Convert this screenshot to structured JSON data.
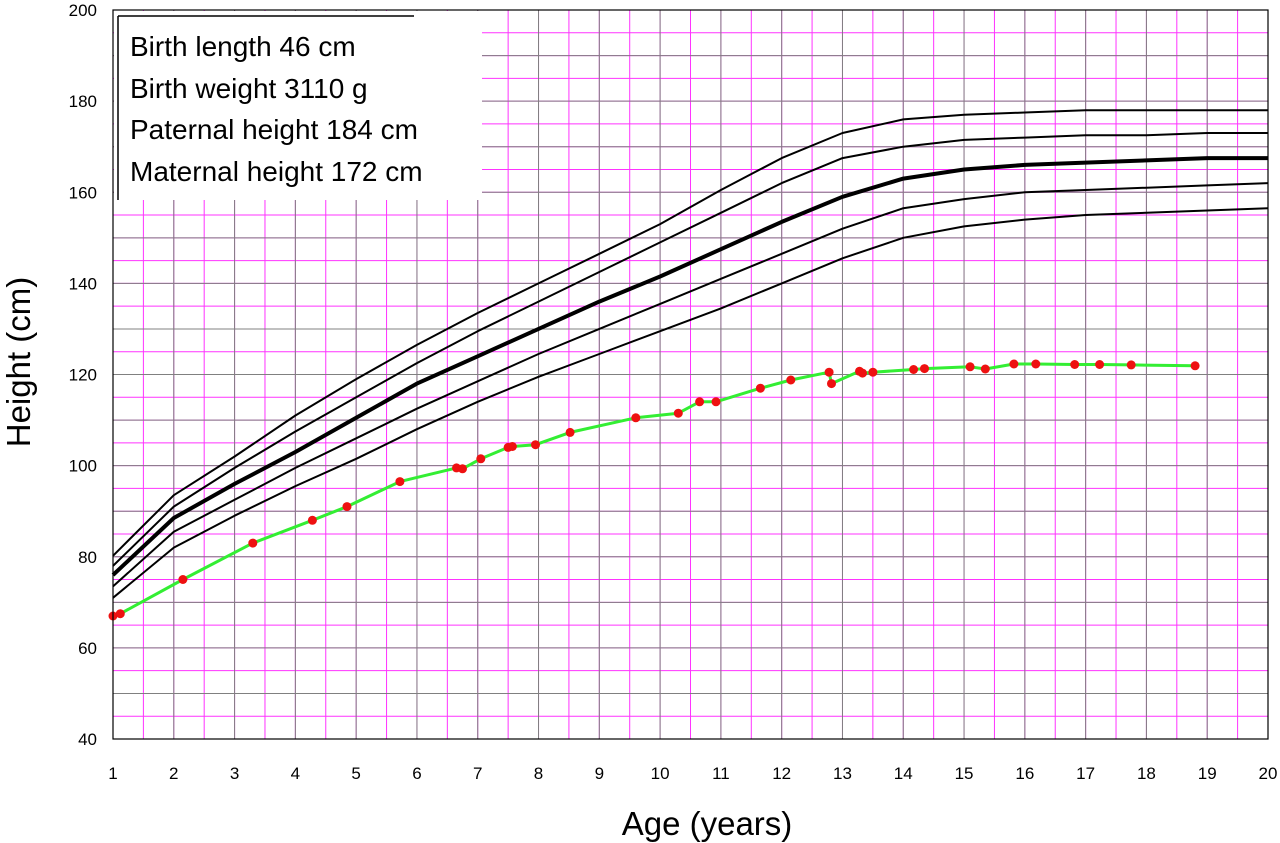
{
  "chart_data": {
    "type": "line",
    "xlabel": "Age (years)",
    "ylabel": "Height (cm)",
    "xlim": [
      1,
      20
    ],
    "ylim": [
      40,
      200
    ],
    "x_ticks": [
      1,
      2,
      3,
      4,
      5,
      6,
      7,
      8,
      9,
      10,
      11,
      12,
      13,
      14,
      15,
      16,
      17,
      18,
      19,
      20
    ],
    "y_ticks": [
      40,
      60,
      80,
      100,
      120,
      140,
      160,
      180,
      200
    ],
    "grid": {
      "major": true,
      "minor": true,
      "major_color": "#808080",
      "minor_color": "#ff33ff",
      "minor_x_step": 0.5,
      "minor_y_step": 5
    },
    "annotation_lines": [
      "Birth length 46 cm",
      "Birth weight 3110 g",
      "Paternal height 184 cm",
      "Maternal height 172 cm"
    ],
    "reference_curves": [
      {
        "color": "#000000",
        "x": [
          1,
          2,
          3,
          4,
          5,
          6,
          7,
          8,
          9,
          10,
          11,
          12,
          13,
          14,
          15,
          16,
          17,
          18,
          19,
          20
        ],
        "y": [
          80.2,
          93.5,
          102,
          111,
          119,
          126.5,
          133.5,
          140,
          146.5,
          153,
          160.5,
          167.5,
          173,
          176,
          177,
          177.5,
          178,
          178,
          178,
          178
        ]
      },
      {
        "color": "#000000",
        "x": [
          1,
          2,
          3,
          4,
          5,
          6,
          7,
          8,
          9,
          10,
          11,
          12,
          13,
          14,
          15,
          16,
          17,
          18,
          19,
          20
        ],
        "y": [
          78,
          91,
          99.5,
          107.5,
          115,
          122.5,
          129.5,
          136,
          142.5,
          149,
          155.5,
          162,
          167.5,
          170,
          171.5,
          172,
          172.5,
          172.5,
          173,
          173
        ]
      },
      {
        "color": "#000000",
        "emphasis": true,
        "x": [
          1,
          2,
          3,
          4,
          5,
          6,
          7,
          8,
          9,
          10,
          11,
          12,
          13,
          14,
          15,
          16,
          17,
          18,
          19,
          20
        ],
        "y": [
          76,
          88.5,
          96,
          103,
          110.5,
          118,
          124,
          130,
          136,
          141.5,
          147.5,
          153.5,
          159,
          163,
          165,
          166,
          166.5,
          167,
          167.5,
          167.5
        ]
      },
      {
        "color": "#000000",
        "x": [
          1,
          2,
          3,
          4,
          5,
          6,
          7,
          8,
          9,
          10,
          11,
          12,
          13,
          14,
          15,
          16,
          17,
          18,
          19,
          20
        ],
        "y": [
          73.5,
          85.5,
          92.5,
          99.5,
          106,
          112.5,
          118.5,
          124.5,
          130,
          135.5,
          141,
          146.5,
          152,
          156.5,
          158.5,
          160,
          160.5,
          161,
          161.5,
          162
        ]
      },
      {
        "color": "#000000",
        "x": [
          1,
          2,
          3,
          4,
          5,
          6,
          7,
          8,
          9,
          10,
          11,
          12,
          13,
          14,
          15,
          16,
          17,
          18,
          19,
          20
        ],
        "y": [
          71,
          82,
          89,
          95.5,
          101.5,
          108,
          114,
          119.5,
          124.5,
          129.5,
          134.5,
          140,
          145.5,
          150,
          152.5,
          154,
          155,
          155.5,
          156,
          156.5
        ]
      }
    ],
    "series": [
      {
        "line_color": "#33ee33",
        "marker_color": "#ee1111",
        "x": [
          1.0,
          1.12,
          2.15,
          3.3,
          4.28,
          4.85,
          5.72,
          6.65,
          6.75,
          7.05,
          7.5,
          7.57,
          7.95,
          8.52,
          9.6,
          10.3,
          10.65,
          10.92,
          11.65,
          12.15,
          12.78,
          12.82,
          13.28,
          13.33,
          13.5,
          14.17,
          14.35,
          15.1,
          15.35,
          15.82,
          16.18,
          16.82,
          17.23,
          17.75,
          18.8
        ],
        "y": [
          67,
          67.5,
          75,
          83,
          88,
          91,
          96.5,
          99.5,
          99.3,
          101.5,
          104,
          104.2,
          104.6,
          107.3,
          110.5,
          111.5,
          114,
          114,
          117,
          118.8,
          120.5,
          118,
          120.7,
          120.3,
          120.5,
          121.1,
          121.3,
          121.7,
          121.2,
          122.3,
          122.3,
          122.2,
          122.2,
          122.1,
          121.9
        ]
      }
    ]
  }
}
